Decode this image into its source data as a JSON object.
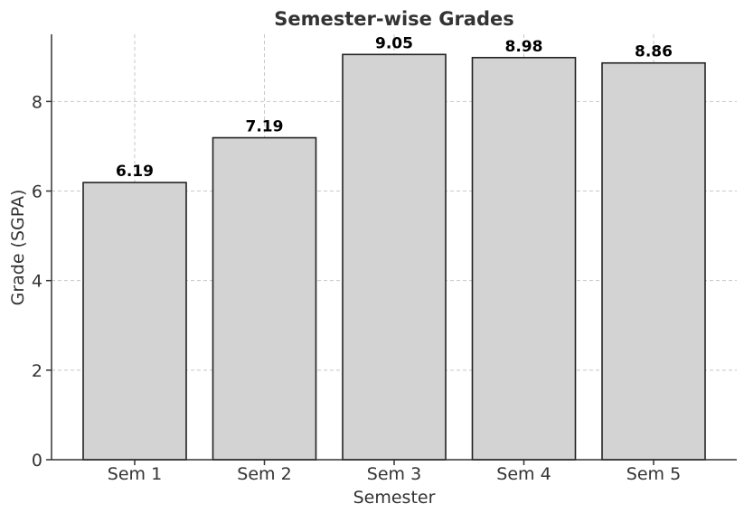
{
  "chart_data": {
    "type": "bar",
    "title": "Semester-wise Grades",
    "xlabel": "Semester",
    "ylabel": "Grade (SGPA)",
    "categories": [
      "Sem 1",
      "Sem 2",
      "Sem 3",
      "Sem 4",
      "Sem 5"
    ],
    "values": [
      6.19,
      7.19,
      9.05,
      8.98,
      8.86
    ],
    "value_labels": [
      "6.19",
      "7.19",
      "9.05",
      "8.98",
      "8.86"
    ],
    "ylim": [
      0,
      9.5
    ],
    "yticks": [
      0,
      2,
      4,
      6,
      8
    ],
    "grid": true,
    "bar_color": "#d3d3d3",
    "edge_color": "#222222"
  }
}
